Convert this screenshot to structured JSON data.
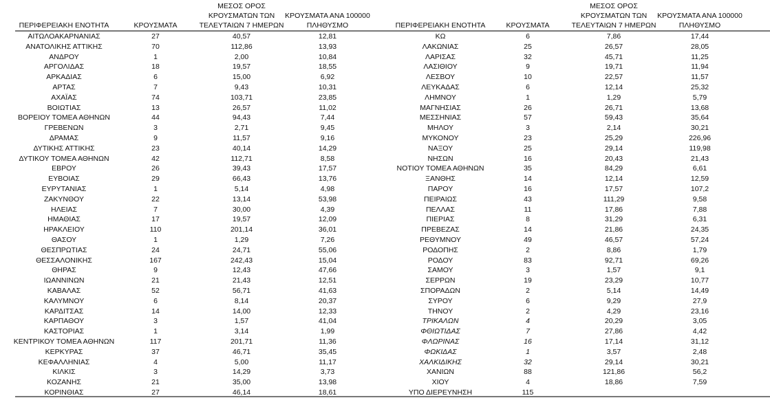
{
  "headers": {
    "region": "ΠΕΡΙΦΕΡΕΙΑΚΗ ΕΝΟΤΗΤΑ",
    "cases": "ΚΡΟΥΣΜΑΤΑ",
    "avg7": [
      "ΜΕΣΟΣ ΟΡΟΣ",
      "ΚΡΟΥΣΜΑΤΩΝ ΤΩΝ",
      "ΤΕΛΕΥΤΑΙΩΝ 7 ΗΜΕΡΩΝ"
    ],
    "per100k": [
      "ΚΡΟΥΣΜΑΤΑ ΑΝΑ 100000",
      "ΠΛΗΘΥΣΜΟ"
    ]
  },
  "left_table": [
    [
      "ΑΙΤΩΛΟΑΚΑΡΝΑΝΙΑΣ",
      "27",
      "40,57",
      "12,81"
    ],
    [
      "ΑΝΑΤΟΛΙΚΗΣ ΑΤΤΙΚΗΣ",
      "70",
      "112,86",
      "13,93"
    ],
    [
      "ΑΝΔΡΟΥ",
      "1",
      "2,00",
      "10,84"
    ],
    [
      "ΑΡΓΟΛΙΔΑΣ",
      "18",
      "19,57",
      "18,55"
    ],
    [
      "ΑΡΚΑΔΙΑΣ",
      "6",
      "15,00",
      "6,92"
    ],
    [
      "ΑΡΤΑΣ",
      "7",
      "9,43",
      "10,31"
    ],
    [
      "ΑΧΑΪΑΣ",
      "74",
      "103,71",
      "23,85"
    ],
    [
      "ΒΟΙΩΤΙΑΣ",
      "13",
      "26,57",
      "11,02"
    ],
    [
      "ΒΟΡΕΙΟΥ ΤΟΜΕΑ ΑΘΗΝΩΝ",
      "44",
      "94,43",
      "7,44"
    ],
    [
      "ΓΡΕΒΕΝΩΝ",
      "3",
      "2,71",
      "9,45"
    ],
    [
      "ΔΡΑΜΑΣ",
      "9",
      "11,57",
      "9,16"
    ],
    [
      "ΔΥΤΙΚΗΣ ΑΤΤΙΚΗΣ",
      "23",
      "40,14",
      "14,29"
    ],
    [
      "ΔΥΤΙΚΟΥ ΤΟΜΕΑ ΑΘΗΝΩΝ",
      "42",
      "112,71",
      "8,58"
    ],
    [
      "ΕΒΡΟΥ",
      "26",
      "39,43",
      "17,57"
    ],
    [
      "ΕΥΒΟΙΑΣ",
      "29",
      "66,43",
      "13,76"
    ],
    [
      "ΕΥΡΥΤΑΝΙΑΣ",
      "1",
      "5,14",
      "4,98"
    ],
    [
      "ΖΑΚΥΝΘΟΥ",
      "22",
      "13,14",
      "53,98"
    ],
    [
      "ΗΛΕΙΑΣ",
      "7",
      "30,00",
      "4,39"
    ],
    [
      "ΗΜΑΘΙΑΣ",
      "17",
      "19,57",
      "12,09"
    ],
    [
      "ΗΡΑΚΛΕΙΟΥ",
      "110",
      "201,14",
      "36,01"
    ],
    [
      "ΘΑΣΟΥ",
      "1",
      "1,29",
      "7,26"
    ],
    [
      "ΘΕΣΠΡΩΤΙΑΣ",
      "24",
      "24,71",
      "55,06"
    ],
    [
      "ΘΕΣΣΑΛΟΝΙΚΗΣ",
      "167",
      "242,43",
      "15,04"
    ],
    [
      "ΘΗΡΑΣ",
      "9",
      "12,43",
      "47,66"
    ],
    [
      "ΙΩΑΝΝΙΝΩΝ",
      "21",
      "21,43",
      "12,51"
    ],
    [
      "ΚΑΒΑΛΑΣ",
      "52",
      "56,71",
      "41,63"
    ],
    [
      "ΚΑΛΥΜΝΟΥ",
      "6",
      "8,14",
      "20,37"
    ],
    [
      "ΚΑΡΔΙΤΣΑΣ",
      "14",
      "14,00",
      "12,33"
    ],
    [
      "ΚΑΡΠΑΘΟΥ",
      "3",
      "1,57",
      "41,04"
    ],
    [
      "ΚΑΣΤΟΡΙΑΣ",
      "1",
      "3,14",
      "1,99"
    ],
    [
      "ΚΕΝΤΡΙΚΟΥ ΤΟΜΕΑ ΑΘΗΝΩΝ",
      "117",
      "201,71",
      "11,36"
    ],
    [
      "ΚΕΡΚΥΡΑΣ",
      "37",
      "46,71",
      "35,45"
    ],
    [
      "ΚΕΦΑΛΛΗΝΙΑΣ",
      "4",
      "5,00",
      "11,17"
    ],
    [
      "ΚΙΛΚΙΣ",
      "3",
      "14,29",
      "3,73"
    ],
    [
      "ΚΟΖΑΝΗΣ",
      "21",
      "35,00",
      "13,98"
    ],
    [
      "ΚΟΡΙΝΘΙΑΣ",
      "27",
      "46,14",
      "18,61"
    ]
  ],
  "right_table": [
    [
      "ΚΩ",
      "6",
      "7,86",
      "17,44"
    ],
    [
      "ΛΑΚΩΝΙΑΣ",
      "25",
      "26,57",
      "28,05"
    ],
    [
      "ΛΑΡΙΣΑΣ",
      "32",
      "45,71",
      "11,25"
    ],
    [
      "ΛΑΣΙΘΙΟΥ",
      "9",
      "19,71",
      "11,94"
    ],
    [
      "ΛΕΣΒΟΥ",
      "10",
      "22,57",
      "11,57"
    ],
    [
      "ΛΕΥΚΑΔΑΣ",
      "6",
      "12,14",
      "25,32"
    ],
    [
      "ΛΗΜΝΟΥ",
      "1",
      "1,29",
      "5,79"
    ],
    [
      "ΜΑΓΝΗΣΙΑΣ",
      "26",
      "26,71",
      "13,68"
    ],
    [
      "ΜΕΣΣΗΝΙΑΣ",
      "57",
      "59,43",
      "35,64"
    ],
    [
      "ΜΗΛΟΥ",
      "3",
      "2,14",
      "30,21"
    ],
    [
      "ΜΥΚΟΝΟΥ",
      "23",
      "25,29",
      "226,96"
    ],
    [
      "ΝΑΞΟΥ",
      "25",
      "29,14",
      "119,98"
    ],
    [
      "ΝΗΣΩΝ",
      "16",
      "20,43",
      "21,43"
    ],
    [
      "ΝΟΤΙΟΥ ΤΟΜΕΑ ΑΘΗΝΩΝ",
      "35",
      "84,29",
      "6,61"
    ],
    [
      "ΞΑΝΘΗΣ",
      "14",
      "12,14",
      "12,59"
    ],
    [
      "ΠΑΡΟΥ",
      "16",
      "17,57",
      "107,2"
    ],
    [
      "ΠΕΙΡΑΙΩΣ",
      "43",
      "111,29",
      "9,58"
    ],
    [
      "ΠΕΛΛΑΣ",
      "11",
      "17,86",
      "7,88"
    ],
    [
      "ΠΙΕΡΙΑΣ",
      "8",
      "31,29",
      "6,31"
    ],
    [
      "ΠΡΕΒΕΖΑΣ",
      "14",
      "21,86",
      "24,35"
    ],
    [
      "ΡΕΘΥΜΝΟΥ",
      "49",
      "46,57",
      "57,24"
    ],
    [
      "ΡΟΔΟΠΗΣ",
      "2",
      "8,86",
      "1,79"
    ],
    [
      "ΡΟΔΟΥ",
      "83",
      "92,71",
      "69,26"
    ],
    [
      "ΣΑΜΟΥ",
      "3",
      "1,57",
      "9,1"
    ],
    [
      "ΣΕΡΡΩΝ",
      "19",
      "23,29",
      "10,77"
    ],
    [
      "ΣΠΟΡΑΔΩΝ",
      "2",
      "5,14",
      "14,49"
    ],
    [
      "ΣΥΡΟΥ",
      "6",
      "9,29",
      "27,9"
    ],
    [
      "ΤΗΝΟΥ",
      "2",
      "4,29",
      "23,16"
    ],
    [
      "ΤΡΙΚΑΛΩΝ",
      "4",
      "20,29",
      "3,05"
    ],
    [
      "ΦΘΙΩΤΙΔΑΣ",
      "7",
      "27,86",
      "4,42"
    ],
    [
      "ΦΛΩΡΙΝΑΣ",
      "16",
      "17,14",
      "31,12"
    ],
    [
      "ΦΩΚΙΔΑΣ",
      "1",
      "3,57",
      "2,48"
    ],
    [
      "ΧΑΛΚΙΔΙΚΗΣ",
      "32",
      "29,14",
      "30,21"
    ],
    [
      "ΧΑΝΙΩΝ",
      "88",
      "121,86",
      "56,2"
    ],
    [
      "ΧΙΟΥ",
      "4",
      "18,86",
      "7,59"
    ],
    [
      "ΥΠΟ ΔΙΕΡΕΥΝΗΣΗ",
      "115",
      "",
      ""
    ]
  ]
}
